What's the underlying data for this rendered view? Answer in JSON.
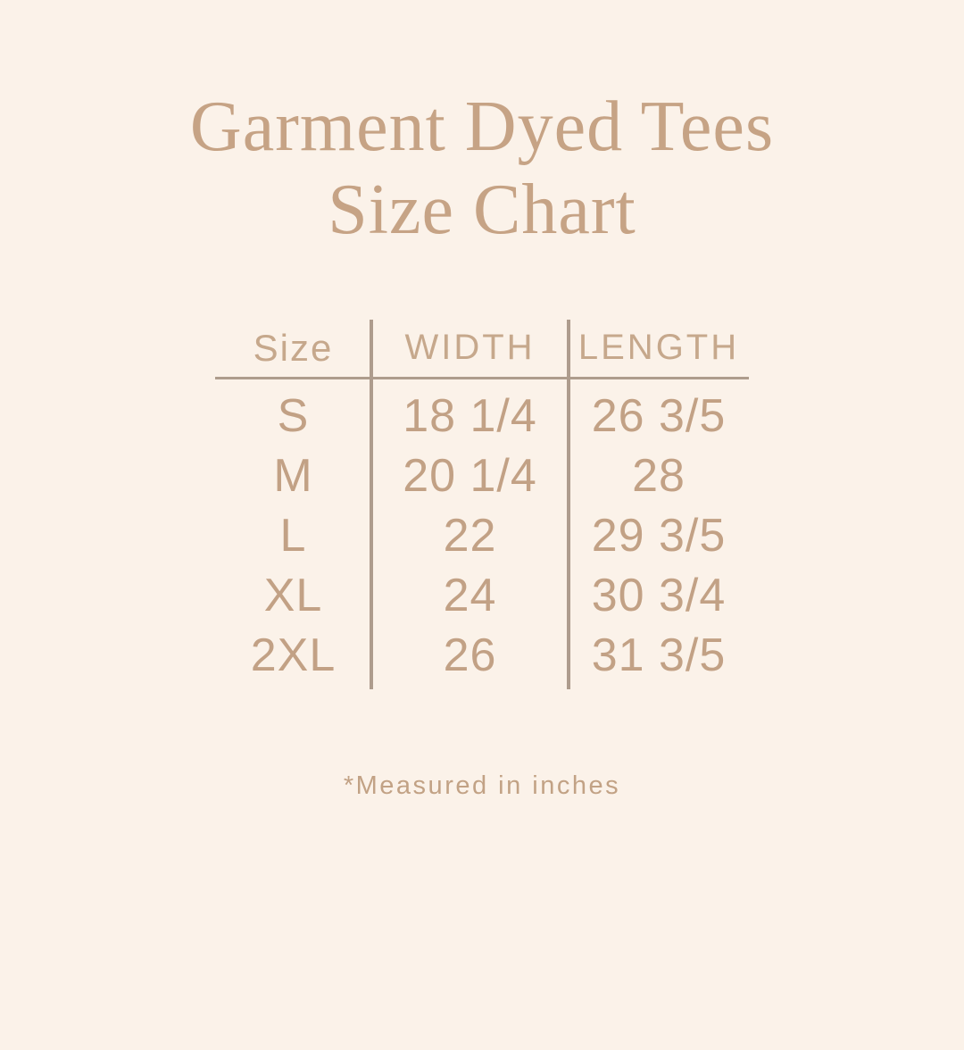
{
  "colors": {
    "background": "#FBF2E9",
    "title_text": "#C6A385",
    "table_text": "#C2A185",
    "divider_line": "#AE9C8D"
  },
  "title": {
    "line1": "Garment Dyed Tees",
    "line2": "Size Chart"
  },
  "table": {
    "headers": {
      "size": "Size",
      "width": "WIDTH",
      "length": "LENGTH"
    },
    "rows": [
      {
        "size": "S",
        "width": "18 1/4",
        "length": "26 3/5"
      },
      {
        "size": "M",
        "width": "20 1/4",
        "length": "28"
      },
      {
        "size": "L",
        "width": "22",
        "length": "29 3/5"
      },
      {
        "size": "XL",
        "width": "24",
        "length": "30 3/4"
      },
      {
        "size": "2XL",
        "width": "26",
        "length": "31 3/5"
      }
    ]
  },
  "footnote": "*Measured in inches",
  "chart_data": {
    "type": "table",
    "title": "Garment Dyed Tees Size Chart",
    "columns": [
      "Size",
      "WIDTH",
      "LENGTH"
    ],
    "rows": [
      [
        "S",
        "18 1/4",
        "26 3/5"
      ],
      [
        "M",
        "20 1/4",
        "28"
      ],
      [
        "L",
        "22",
        "29 3/5"
      ],
      [
        "XL",
        "24",
        "30 3/4"
      ],
      [
        "2XL",
        "26",
        "31 3/5"
      ]
    ],
    "note": "*Measured in inches",
    "units": "inches"
  }
}
